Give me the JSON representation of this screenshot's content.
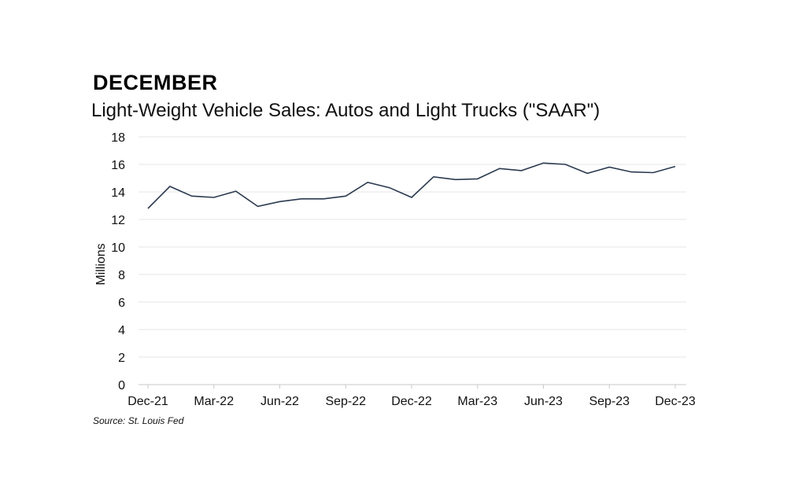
{
  "heading": "DECEMBER",
  "source": "Source: St. Louis Fed",
  "chart_data": {
    "type": "line",
    "title": "Light-Weight Vehicle Sales: Autos and Light Trucks (\"SAAR\")",
    "xlabel": "",
    "ylabel": "Millions",
    "ylim": [
      0,
      18
    ],
    "yticks": [
      0,
      2,
      4,
      6,
      8,
      10,
      12,
      14,
      16,
      18
    ],
    "xtick_labels": [
      "Dec-21",
      "Mar-22",
      "Jun-22",
      "Sep-22",
      "Dec-22",
      "Mar-23",
      "Jun-23",
      "Sep-23",
      "Dec-23"
    ],
    "grid": true,
    "line_color": "#2b3a4f",
    "x": [
      "Dec-21",
      "Jan-22",
      "Feb-22",
      "Mar-22",
      "Apr-22",
      "May-22",
      "Jun-22",
      "Jul-22",
      "Aug-22",
      "Sep-22",
      "Oct-22",
      "Nov-22",
      "Dec-22",
      "Jan-23",
      "Feb-23",
      "Mar-23",
      "Apr-23",
      "May-23",
      "Jun-23",
      "Jul-23",
      "Aug-23",
      "Sep-23",
      "Oct-23",
      "Nov-23",
      "Dec-23"
    ],
    "series": [
      {
        "values": [
          12.8,
          14.4,
          13.7,
          13.6,
          14.05,
          12.95,
          13.3,
          13.5,
          13.5,
          13.7,
          14.7,
          14.3,
          13.6,
          15.1,
          14.9,
          14.95,
          15.7,
          15.55,
          16.1,
          16.0,
          15.35,
          15.8,
          15.45,
          15.4,
          15.85
        ]
      }
    ]
  }
}
